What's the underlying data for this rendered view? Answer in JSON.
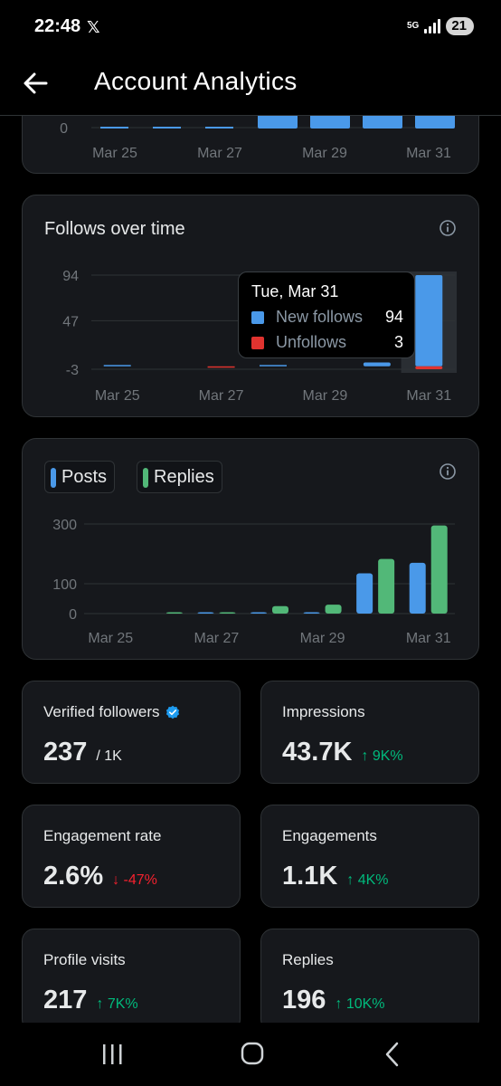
{
  "status_bar": {
    "time": "22:48",
    "x_logo": "𝕏",
    "network": "5G",
    "battery": "21"
  },
  "header": {
    "title": "Account Analytics"
  },
  "top_card": {
    "y_tick": "0",
    "x_labels": [
      "Mar 25",
      "Mar 27",
      "Mar 29",
      "Mar 31"
    ]
  },
  "follows_card": {
    "title": "Follows over time",
    "tooltip": {
      "date": "Tue, Mar 31",
      "rows": [
        {
          "label": "New follows",
          "value": "94",
          "color": "#4a99e9"
        },
        {
          "label": "Unfollows",
          "value": "3",
          "color": "#e0332f"
        }
      ]
    },
    "chart_data": {
      "type": "bar",
      "categories": [
        "Mar 25",
        "Mar 26",
        "Mar 27",
        "Mar 28",
        "Mar 29",
        "Mar 30",
        "Mar 31"
      ],
      "x_tick_labels": [
        "Mar 25",
        "Mar 27",
        "Mar 29",
        "Mar 31"
      ],
      "y_ticks": [
        "94",
        "47",
        "-3"
      ],
      "ylim": [
        -3,
        94
      ],
      "series": [
        {
          "name": "New follows",
          "color": "#4a99e9",
          "values": [
            1,
            0,
            0,
            1,
            0,
            4,
            94
          ]
        },
        {
          "name": "Unfollows",
          "color": "#e0332f",
          "values": [
            0,
            0,
            -1,
            0,
            0,
            0,
            -3
          ]
        }
      ]
    }
  },
  "posts_card": {
    "chart_data": {
      "type": "bar",
      "categories": [
        "Mar 25",
        "Mar 26",
        "Mar 27",
        "Mar 28",
        "Mar 29",
        "Mar 30",
        "Mar 31"
      ],
      "x_tick_labels": [
        "Mar 25",
        "Mar 27",
        "Mar 29",
        "Mar 31"
      ],
      "y_ticks": [
        "300",
        "100",
        "0"
      ],
      "ylim": [
        0,
        300
      ],
      "series": [
        {
          "name": "Posts",
          "color": "#4a99e9",
          "values": [
            0,
            0,
            1,
            2,
            1,
            135,
            170
          ]
        },
        {
          "name": "Replies",
          "color": "#52b878",
          "values": [
            0,
            1,
            1,
            25,
            30,
            183,
            295
          ]
        }
      ]
    }
  },
  "stats": [
    {
      "label": "Verified followers",
      "value": "237",
      "sub": "/ 1K",
      "delta": "",
      "trend": ""
    },
    {
      "label": "Impressions",
      "value": "43.7K",
      "sub": "",
      "delta": "↑ 9K%",
      "trend": "up"
    },
    {
      "label": "Engagement rate",
      "value": "2.6%",
      "sub": "",
      "delta": "↓ -47%",
      "trend": "down"
    },
    {
      "label": "Engagements",
      "value": "1.1K",
      "sub": "",
      "delta": "↑ 4K%",
      "trend": "up"
    },
    {
      "label": "Profile visits",
      "value": "217",
      "sub": "",
      "delta": "↑ 7K%",
      "trend": "up"
    },
    {
      "label": "Replies",
      "value": "196",
      "sub": "",
      "delta": "↑ 10K%",
      "trend": "up"
    }
  ],
  "colors": {
    "accent_blue": "#4a99e9",
    "reply_green": "#52b878",
    "unfollow_red": "#e0332f",
    "card_bg": "#16181c",
    "border": "#2f3336"
  },
  "icons": {
    "back": "arrow-left-icon",
    "info": "info-icon",
    "verified": "verified-badge-icon",
    "nav_recents": "recents-icon",
    "nav_home": "home-icon",
    "nav_back": "back-icon"
  }
}
